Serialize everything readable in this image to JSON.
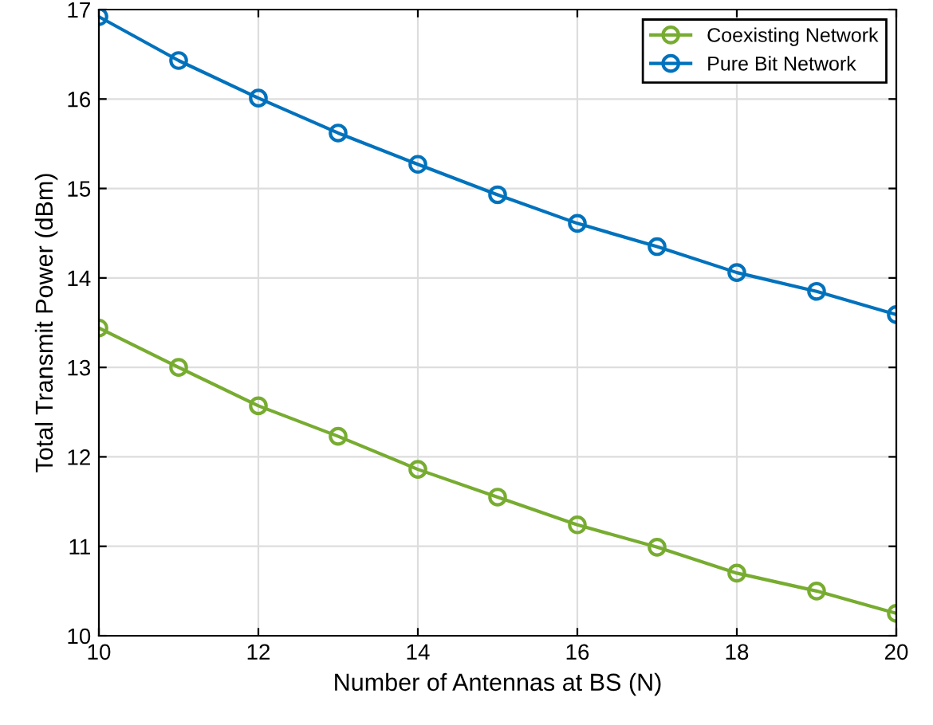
{
  "chart_data": {
    "type": "line",
    "xlabel": "Number of Antennas at BS (N)",
    "ylabel": "Total Transmit Power (dBm)",
    "x": [
      10,
      11,
      12,
      13,
      14,
      15,
      16,
      17,
      18,
      19,
      20
    ],
    "series": [
      {
        "name": "Coexisting Network",
        "color": "#77ac30",
        "values": [
          13.44,
          13.0,
          12.57,
          12.23,
          11.86,
          11.55,
          11.24,
          10.99,
          10.7,
          10.5,
          10.25
        ]
      },
      {
        "name": "Pure Bit Network",
        "color": "#0072bd",
        "values": [
          16.92,
          16.43,
          16.01,
          15.62,
          15.27,
          14.93,
          14.61,
          14.35,
          14.06,
          13.85,
          13.59
        ]
      }
    ],
    "xlim": [
      10,
      20
    ],
    "xticks": [
      10,
      12,
      14,
      16,
      18,
      20
    ],
    "ylim": [
      10,
      17
    ],
    "yticks": [
      10,
      11,
      12,
      13,
      14,
      15,
      16,
      17
    ],
    "grid": true,
    "legend": "top right",
    "marker": "circle",
    "line_style": "solid"
  }
}
